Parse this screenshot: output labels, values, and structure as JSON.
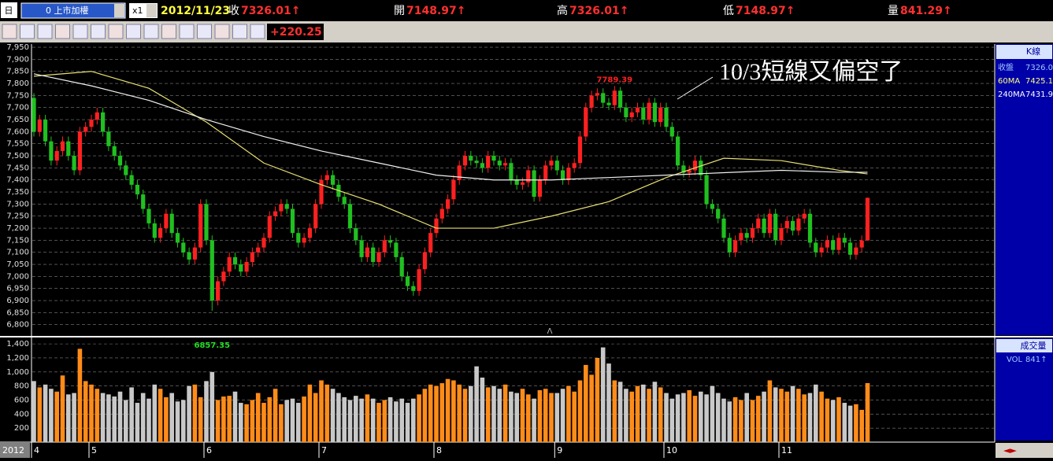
{
  "toolbar": {
    "period": "日",
    "symbol": "0 上市加權",
    "zoom": "x1",
    "date": "2012/11/23",
    "quotes": [
      {
        "label": "收",
        "value": "7326.01↑"
      },
      {
        "label": "開",
        "value": "7148.97↑"
      },
      {
        "label": "高",
        "value": "7326.01↑"
      },
      {
        "label": "低",
        "value": "7148.97↑"
      },
      {
        "label": "量",
        "value": "841.29↑"
      }
    ],
    "change": "+220.25"
  },
  "legend": {
    "title": "K線",
    "close_label": "收盤",
    "values": [
      "7326.0",
      "7425.1",
      "7431.9"
    ]
  },
  "volume_legend": {
    "title": "成交量",
    "label": "VOL",
    "value": "841↑"
  },
  "year": "2012",
  "chart_data": [
    {
      "type": "candlestick",
      "annotation": "10/3短線又偏空了",
      "up_color": "#ff2020",
      "down_color": "#20c020",
      "grid": true,
      "ylim": [
        6760,
        7960
      ],
      "yticks": [
        {
          "value": 6800,
          "label": "6,800"
        },
        {
          "value": 6850,
          "label": "6,850"
        },
        {
          "value": 6900,
          "label": "6,900"
        },
        {
          "value": 6950,
          "label": "6,950"
        },
        {
          "value": 7000,
          "label": "7,000"
        },
        {
          "value": 7050,
          "label": "7,050"
        },
        {
          "value": 7100,
          "label": "7,100"
        },
        {
          "value": 7150,
          "label": "7,150"
        },
        {
          "value": 7200,
          "label": "7,200"
        },
        {
          "value": 7250,
          "label": "7,250"
        },
        {
          "value": 7300,
          "label": "7,300"
        },
        {
          "value": 7350,
          "label": "7,350"
        },
        {
          "value": 7400,
          "label": "7,400"
        },
        {
          "value": 7450,
          "label": "7,450"
        },
        {
          "value": 7500,
          "label": "7,500"
        },
        {
          "value": 7550,
          "label": "7,550"
        },
        {
          "value": 7600,
          "label": "7,600"
        },
        {
          "value": 7650,
          "label": "7,650"
        },
        {
          "value": 7700,
          "label": "7,700"
        },
        {
          "value": 7750,
          "label": "7,750"
        },
        {
          "value": 7800,
          "label": "7,800"
        },
        {
          "value": 7850,
          "label": "7,850"
        },
        {
          "value": 7900,
          "label": "7,900"
        },
        {
          "value": 7950,
          "label": "7,950"
        }
      ],
      "xticks": [
        {
          "value": 0,
          "label": "4"
        },
        {
          "value": 10,
          "label": "5"
        },
        {
          "value": 30,
          "label": "6"
        },
        {
          "value": 50,
          "label": "7"
        },
        {
          "value": 70,
          "label": "8"
        },
        {
          "value": 91,
          "label": "9"
        },
        {
          "value": 110,
          "label": "10"
        },
        {
          "value": 130,
          "label": "11"
        }
      ],
      "ohlc": [
        [
          7740,
          7760,
          7580,
          7600
        ],
        [
          7600,
          7670,
          7580,
          7650
        ],
        [
          7650,
          7670,
          7540,
          7560
        ],
        [
          7560,
          7580,
          7460,
          7480
        ],
        [
          7480,
          7540,
          7460,
          7520
        ],
        [
          7520,
          7580,
          7500,
          7560
        ],
        [
          7560,
          7580,
          7480,
          7500
        ],
        [
          7500,
          7520,
          7420,
          7440
        ],
        [
          7440,
          7620,
          7420,
          7600
        ],
        [
          7600,
          7640,
          7580,
          7620
        ],
        [
          7620,
          7670,
          7600,
          7650
        ],
        [
          7650,
          7700,
          7630,
          7680
        ],
        [
          7680,
          7700,
          7580,
          7600
        ],
        [
          7600,
          7620,
          7520,
          7540
        ],
        [
          7540,
          7560,
          7480,
          7500
        ],
        [
          7500,
          7520,
          7440,
          7460
        ],
        [
          7460,
          7480,
          7400,
          7420
        ],
        [
          7420,
          7440,
          7360,
          7380
        ],
        [
          7380,
          7400,
          7320,
          7340
        ],
        [
          7340,
          7360,
          7260,
          7280
        ],
        [
          7280,
          7300,
          7200,
          7220
        ],
        [
          7220,
          7240,
          7140,
          7160
        ],
        [
          7160,
          7220,
          7140,
          7200
        ],
        [
          7200,
          7280,
          7180,
          7260
        ],
        [
          7260,
          7280,
          7160,
          7180
        ],
        [
          7180,
          7200,
          7120,
          7140
        ],
        [
          7140,
          7160,
          7080,
          7100
        ],
        [
          7100,
          7120,
          7050,
          7070
        ],
        [
          7070,
          7140,
          7050,
          7120
        ],
        [
          7120,
          7320,
          7100,
          7300
        ],
        [
          7300,
          7320,
          7130,
          7150
        ],
        [
          7150,
          7170,
          6857.35,
          6900
        ],
        [
          6900,
          7000,
          6880,
          6980
        ],
        [
          6980,
          7040,
          6960,
          7020
        ],
        [
          7020,
          7100,
          7000,
          7080
        ],
        [
          7080,
          7100,
          7030,
          7050
        ],
        [
          7050,
          7070,
          7000,
          7020
        ],
        [
          7020,
          7080,
          7000,
          7060
        ],
        [
          7060,
          7120,
          7040,
          7100
        ],
        [
          7100,
          7140,
          7080,
          7120
        ],
        [
          7120,
          7180,
          7100,
          7160
        ],
        [
          7160,
          7270,
          7140,
          7250
        ],
        [
          7250,
          7290,
          7230,
          7270
        ],
        [
          7270,
          7320,
          7250,
          7300
        ],
        [
          7300,
          7320,
          7260,
          7280
        ],
        [
          7280,
          7300,
          7160,
          7180
        ],
        [
          7180,
          7200,
          7120,
          7140
        ],
        [
          7140,
          7180,
          7120,
          7160
        ],
        [
          7160,
          7220,
          7140,
          7200
        ],
        [
          7200,
          7320,
          7180,
          7300
        ],
        [
          7300,
          7420,
          7280,
          7400
        ],
        [
          7400,
          7440,
          7380,
          7420
        ],
        [
          7420,
          7440,
          7360,
          7380
        ],
        [
          7380,
          7400,
          7310,
          7330
        ],
        [
          7330,
          7350,
          7280,
          7300
        ],
        [
          7300,
          7320,
          7180,
          7200
        ],
        [
          7200,
          7220,
          7130,
          7150
        ],
        [
          7150,
          7170,
          7060,
          7080
        ],
        [
          7080,
          7140,
          7060,
          7120
        ],
        [
          7120,
          7140,
          7040,
          7060
        ],
        [
          7060,
          7120,
          7040,
          7100
        ],
        [
          7100,
          7170,
          7080,
          7150
        ],
        [
          7150,
          7170,
          7120,
          7140
        ],
        [
          7140,
          7160,
          7060,
          7080
        ],
        [
          7080,
          7100,
          6980,
          7000
        ],
        [
          7000,
          7020,
          6940,
          6960
        ],
        [
          6960,
          6980,
          6920,
          6940
        ],
        [
          6940,
          7050,
          6920,
          7030
        ],
        [
          7030,
          7120,
          7010,
          7100
        ],
        [
          7100,
          7200,
          7080,
          7180
        ],
        [
          7180,
          7260,
          7160,
          7240
        ],
        [
          7240,
          7300,
          7220,
          7280
        ],
        [
          7280,
          7340,
          7260,
          7320
        ],
        [
          7320,
          7420,
          7300,
          7400
        ],
        [
          7400,
          7480,
          7380,
          7460
        ],
        [
          7460,
          7520,
          7440,
          7500
        ],
        [
          7500,
          7520,
          7460,
          7480
        ],
        [
          7480,
          7500,
          7450,
          7470
        ],
        [
          7470,
          7490,
          7430,
          7450
        ],
        [
          7450,
          7520,
          7430,
          7500
        ],
        [
          7500,
          7520,
          7460,
          7480
        ],
        [
          7480,
          7500,
          7440,
          7460
        ],
        [
          7460,
          7490,
          7440,
          7470
        ],
        [
          7470,
          7490,
          7380,
          7400
        ],
        [
          7400,
          7420,
          7360,
          7380
        ],
        [
          7380,
          7410,
          7360,
          7390
        ],
        [
          7390,
          7460,
          7370,
          7440
        ],
        [
          7440,
          7460,
          7310,
          7330
        ],
        [
          7330,
          7420,
          7310,
          7400
        ],
        [
          7400,
          7480,
          7380,
          7460
        ],
        [
          7460,
          7500,
          7440,
          7480
        ],
        [
          7480,
          7500,
          7420,
          7440
        ],
        [
          7440,
          7460,
          7380,
          7400
        ],
        [
          7400,
          7470,
          7380,
          7450
        ],
        [
          7450,
          7490,
          7430,
          7470
        ],
        [
          7470,
          7600,
          7450,
          7580
        ],
        [
          7580,
          7720,
          7560,
          7700
        ],
        [
          7700,
          7770,
          7680,
          7750
        ],
        [
          7750,
          7780,
          7730,
          7760
        ],
        [
          7760,
          7780,
          7700,
          7720
        ],
        [
          7720,
          7740,
          7690,
          7710
        ],
        [
          7710,
          7789.39,
          7690,
          7770
        ],
        [
          7770,
          7785,
          7680,
          7700
        ],
        [
          7700,
          7720,
          7640,
          7660
        ],
        [
          7660,
          7700,
          7640,
          7680
        ],
        [
          7680,
          7720,
          7660,
          7700
        ],
        [
          7700,
          7720,
          7630,
          7650
        ],
        [
          7650,
          7740,
          7630,
          7720
        ],
        [
          7720,
          7740,
          7620,
          7640
        ],
        [
          7640,
          7720,
          7620,
          7700
        ],
        [
          7700,
          7720,
          7600,
          7620
        ],
        [
          7620,
          7640,
          7560,
          7580
        ],
        [
          7580,
          7600,
          7440,
          7460
        ],
        [
          7460,
          7480,
          7410,
          7430
        ],
        [
          7430,
          7460,
          7410,
          7440
        ],
        [
          7440,
          7500,
          7420,
          7480
        ],
        [
          7480,
          7500,
          7400,
          7420
        ],
        [
          7420,
          7440,
          7280,
          7300
        ],
        [
          7300,
          7320,
          7260,
          7280
        ],
        [
          7280,
          7300,
          7220,
          7240
        ],
        [
          7240,
          7260,
          7140,
          7160
        ],
        [
          7160,
          7180,
          7080,
          7100
        ],
        [
          7100,
          7170,
          7080,
          7150
        ],
        [
          7150,
          7200,
          7130,
          7180
        ],
        [
          7180,
          7200,
          7140,
          7160
        ],
        [
          7160,
          7220,
          7140,
          7200
        ],
        [
          7200,
          7260,
          7180,
          7240
        ],
        [
          7240,
          7260,
          7160,
          7180
        ],
        [
          7180,
          7280,
          7160,
          7260
        ],
        [
          7260,
          7280,
          7130,
          7150
        ],
        [
          7150,
          7220,
          7130,
          7200
        ],
        [
          7200,
          7250,
          7180,
          7230
        ],
        [
          7230,
          7250,
          7170,
          7190
        ],
        [
          7190,
          7260,
          7170,
          7240
        ],
        [
          7240,
          7280,
          7220,
          7260
        ],
        [
          7260,
          7280,
          7120,
          7140
        ],
        [
          7140,
          7160,
          7080,
          7100
        ],
        [
          7100,
          7140,
          7080,
          7120
        ],
        [
          7120,
          7170,
          7100,
          7150
        ],
        [
          7150,
          7170,
          7090,
          7110
        ],
        [
          7110,
          7180,
          7090,
          7160
        ],
        [
          7160,
          7180,
          7120,
          7140
        ],
        [
          7140,
          7160,
          7070,
          7090
        ],
        [
          7090,
          7140,
          7070,
          7120
        ],
        [
          7120,
          7170,
          7100,
          7148.97
        ],
        [
          7148.97,
          7326.01,
          7148.97,
          7326.01
        ]
      ],
      "series": [
        {
          "name": "60MA",
          "color": "#e8e070",
          "x": [
            0,
            10,
            20,
            30,
            40,
            50,
            60,
            70,
            80,
            90,
            100,
            110,
            120,
            130,
            140,
            145
          ],
          "values": [
            7830,
            7850,
            7780,
            7640,
            7470,
            7380,
            7300,
            7200,
            7200,
            7250,
            7310,
            7410,
            7490,
            7480,
            7440,
            7425.1
          ]
        },
        {
          "name": "240MA",
          "color": "#f0f0f0",
          "x": [
            0,
            10,
            20,
            30,
            40,
            50,
            60,
            70,
            80,
            90,
            100,
            110,
            120,
            130,
            140,
            145
          ],
          "values": [
            7840,
            7790,
            7730,
            7650,
            7580,
            7520,
            7470,
            7420,
            7400,
            7400,
            7410,
            7420,
            7430,
            7440,
            7432,
            7431.9
          ]
        }
      ]
    },
    {
      "type": "bar",
      "up_color": "#ff8c1a",
      "down_color": "#c8c8c8",
      "grid": true,
      "ylim": [
        0,
        1480
      ],
      "yticks": [
        200,
        400,
        600,
        800,
        {
          "value": 1000,
          "label": "1,000"
        },
        {
          "value": 1200,
          "label": "1,200"
        },
        {
          "value": 1400,
          "label": "1,400"
        }
      ],
      "values": [
        870,
        780,
        820,
        760,
        720,
        950,
        680,
        700,
        1330,
        870,
        820,
        760,
        700,
        680,
        650,
        720,
        600,
        780,
        560,
        700,
        620,
        820,
        760,
        640,
        700,
        580,
        600,
        800,
        820,
        640,
        870,
        1000,
        600,
        650,
        660,
        720,
        560,
        540,
        600,
        700,
        560,
        640,
        760,
        540,
        600,
        620,
        560,
        650,
        820,
        700,
        880,
        820,
        760,
        700,
        640,
        600,
        660,
        620,
        680,
        620,
        560,
        600,
        640,
        580,
        620,
        560,
        620,
        680,
        760,
        820,
        800,
        840,
        900,
        880,
        820,
        760,
        800,
        1080,
        920,
        780,
        800,
        760,
        820,
        720,
        700,
        760,
        680,
        620,
        740,
        760,
        700,
        700,
        760,
        800,
        720,
        880,
        1100,
        960,
        1200,
        1350,
        1120,
        880,
        860,
        760,
        720,
        800,
        820,
        760,
        860,
        780,
        700,
        620,
        680,
        700,
        740,
        660,
        720,
        680,
        800,
        700,
        620,
        580,
        640,
        600,
        700,
        600,
        660,
        720,
        880,
        780,
        760,
        720,
        800,
        760,
        680,
        700,
        820,
        720,
        620,
        600,
        640,
        560,
        520,
        540,
        460,
        841
      ]
    }
  ]
}
